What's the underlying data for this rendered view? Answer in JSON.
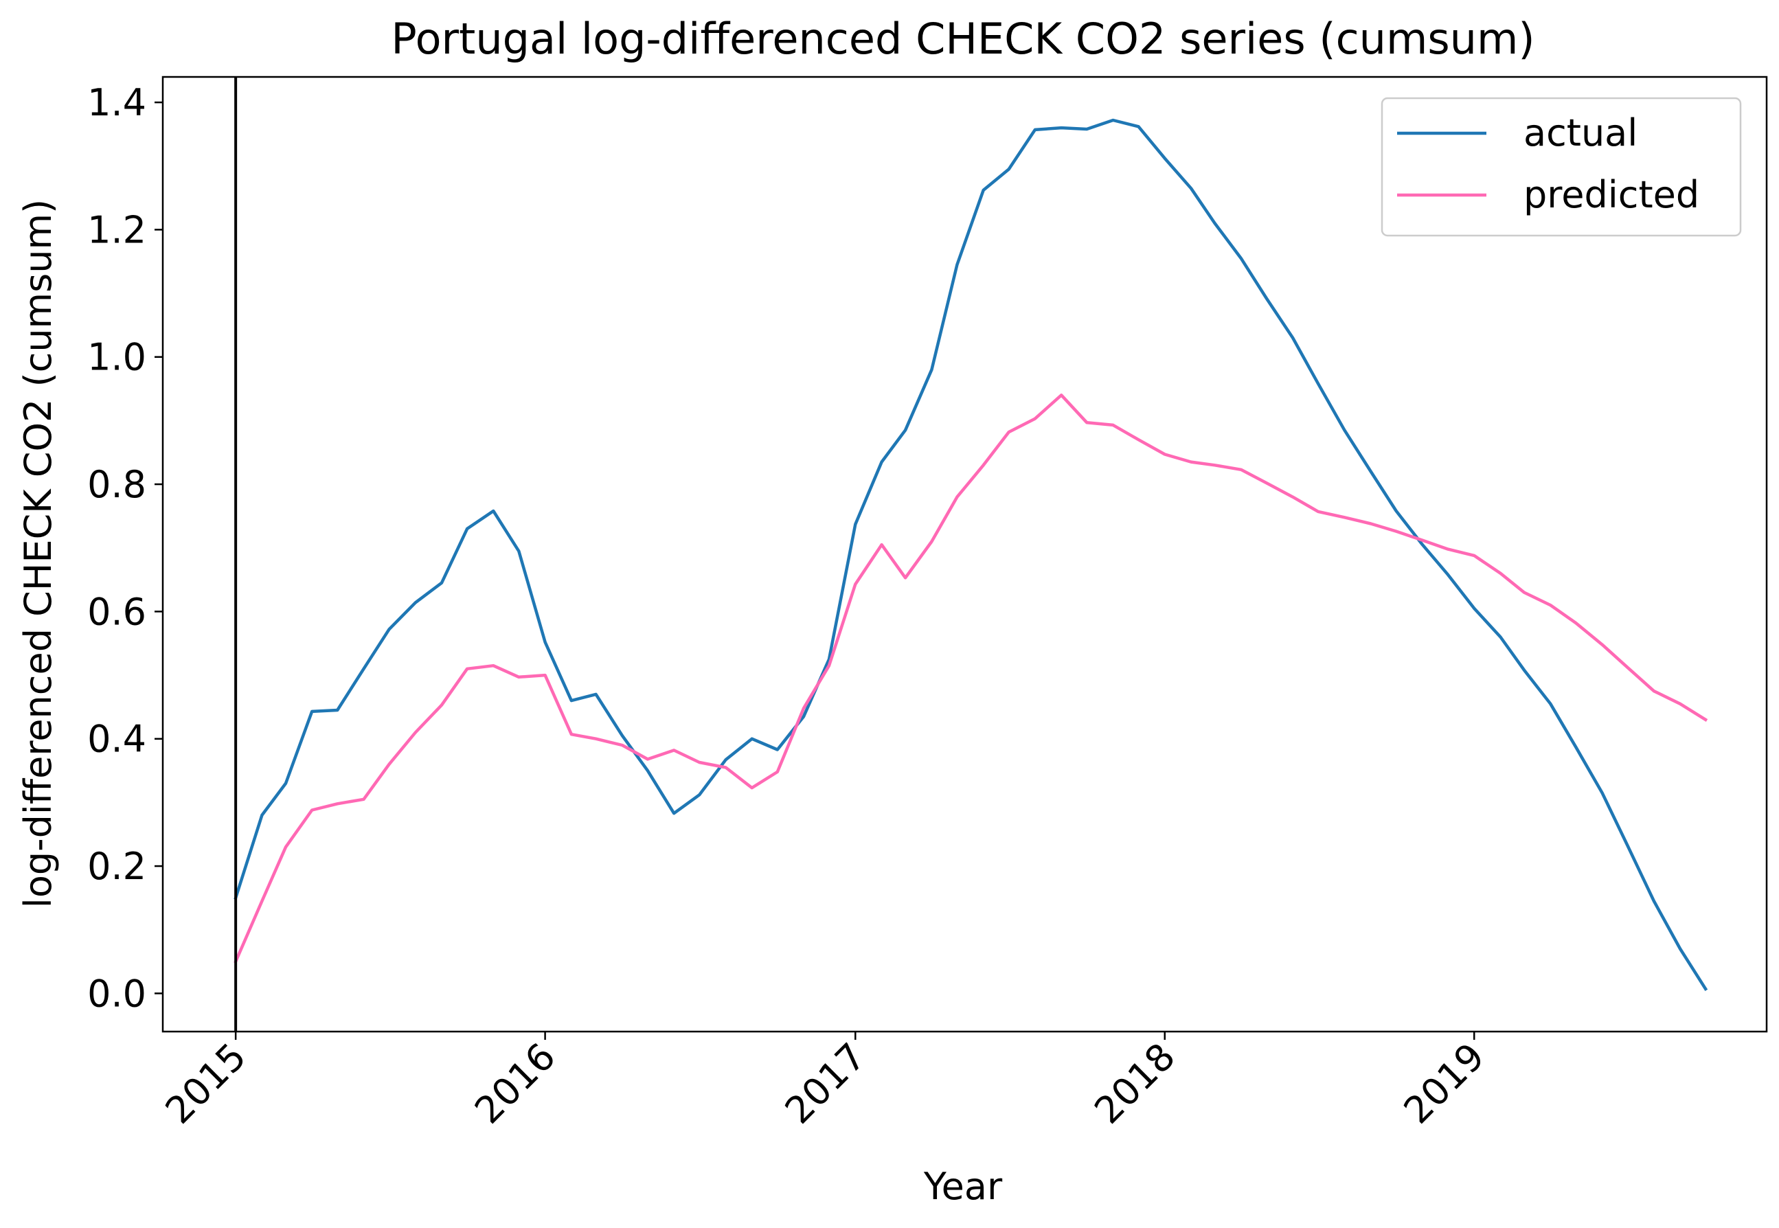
{
  "chart_data": {
    "type": "line",
    "title": "Portugal log-differenced CHECK CO2 series (cumsum)",
    "xlabel": "Year",
    "ylabel": "log-differenced CHECK CO2 (cumsum)",
    "x_ticks": [
      "2015",
      "2016",
      "2017",
      "2018",
      "2019"
    ],
    "y_ticks": [
      "0.0",
      "0.2",
      "0.4",
      "0.6",
      "0.8",
      "1.0",
      "1.2",
      "1.4"
    ],
    "xlim": [
      "2014-10-07",
      "2019-12-12"
    ],
    "ylim": [
      -0.06,
      1.44
    ],
    "grid": false,
    "legend_position": "upper right",
    "vertical_marker": "2015-01-01",
    "x": [
      "2015-01",
      "2015-02",
      "2015-03",
      "2015-04",
      "2015-05",
      "2015-06",
      "2015-07",
      "2015-08",
      "2015-09",
      "2015-10",
      "2015-11",
      "2015-12",
      "2016-01",
      "2016-02",
      "2016-03",
      "2016-04",
      "2016-05",
      "2016-06",
      "2016-07",
      "2016-08",
      "2016-09",
      "2016-10",
      "2016-11",
      "2016-12",
      "2017-01",
      "2017-02",
      "2017-03",
      "2017-04",
      "2017-05",
      "2017-06",
      "2017-07",
      "2017-08",
      "2017-09",
      "2017-10",
      "2017-11",
      "2017-12",
      "2018-01",
      "2018-02",
      "2018-03",
      "2018-04",
      "2018-05",
      "2018-06",
      "2018-07",
      "2018-08",
      "2018-09",
      "2018-10",
      "2018-11",
      "2018-12",
      "2019-01",
      "2019-02",
      "2019-03",
      "2019-04",
      "2019-05",
      "2019-06",
      "2019-07",
      "2019-08",
      "2019-09",
      "2019-10"
    ],
    "series": [
      {
        "name": "actual",
        "color": "#1f77b4",
        "values": [
          0.15,
          0.28,
          0.33,
          0.443,
          0.445,
          0.51,
          0.572,
          0.614,
          0.645,
          0.73,
          0.758,
          0.695,
          0.552,
          0.46,
          0.47,
          0.405,
          0.35,
          0.283,
          0.312,
          0.367,
          0.4,
          0.383,
          0.435,
          0.525,
          0.737,
          0.835,
          0.885,
          0.98,
          1.145,
          1.262,
          1.295,
          1.357,
          1.36,
          1.358,
          1.372,
          1.362,
          1.312,
          1.265,
          1.21,
          1.155,
          1.092,
          1.03,
          0.958,
          0.885,
          0.82,
          0.758,
          0.705,
          0.658,
          0.605,
          0.56,
          0.508,
          0.455,
          0.387,
          0.315,
          0.232,
          0.145,
          0.07,
          0.007
        ]
      },
      {
        "name": "predicted",
        "color": "#ff69b4",
        "values": [
          0.05,
          0.145,
          0.23,
          0.288,
          0.298,
          0.305,
          0.36,
          0.41,
          0.453,
          0.51,
          0.515,
          0.497,
          0.5,
          0.407,
          0.4,
          0.39,
          0.368,
          0.382,
          0.363,
          0.355,
          0.323,
          0.348,
          0.448,
          0.515,
          0.643,
          0.705,
          0.653,
          0.71,
          0.78,
          0.83,
          0.882,
          0.903,
          0.94,
          0.897,
          0.893,
          0.87,
          0.847,
          0.835,
          0.83,
          0.823,
          0.802,
          0.78,
          0.757,
          0.748,
          0.738,
          0.726,
          0.712,
          0.698,
          0.688,
          0.66,
          0.63,
          0.61,
          0.582,
          0.548,
          0.512,
          0.475,
          0.455,
          0.43
        ]
      }
    ]
  }
}
